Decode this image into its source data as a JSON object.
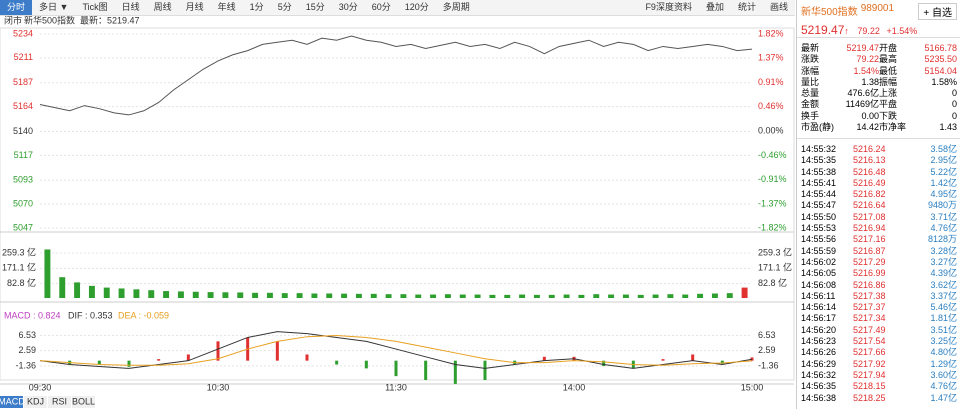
{
  "toolbar": {
    "tabs": [
      "分时",
      "多日 ▼",
      "Tick图",
      "日线",
      "周线",
      "月线",
      "年线",
      "1分",
      "5分",
      "15分",
      "30分",
      "60分",
      "120分",
      "多周期"
    ],
    "tools": [
      "F9深度资料",
      "叠加",
      "统计",
      "画线"
    ]
  },
  "chart_header": {
    "status": "闭市",
    "name": "新华500指数",
    "latest": "最新：5219.47"
  },
  "time_axis": [
    "09:30",
    "10:30",
    "11:30",
    "14:00",
    "15:00"
  ],
  "indicator_tabs": [
    "MACD",
    "KDJ",
    "RSI",
    "BOLL"
  ],
  "chart_data": [
    {
      "type": "line",
      "name": "price",
      "color": "#555555",
      "ylim": [
        5047,
        5234
      ],
      "yticks": [
        5047,
        5070,
        5093,
        5117,
        5140,
        5164,
        5187,
        5211,
        5234
      ],
      "y2lim": [
        -1.82,
        1.82
      ],
      "y2ticks": [
        {
          "value": -1.82,
          "label": "-1.82%"
        },
        {
          "value": -1.37,
          "label": "-1.37%"
        },
        {
          "value": -0.91,
          "label": "-0.91%"
        },
        {
          "value": -0.46,
          "label": "-0.46%"
        },
        {
          "value": 0,
          "label": "0.00%"
        },
        {
          "value": 0.46,
          "label": "0.46%"
        },
        {
          "value": 0.91,
          "label": "0.91%"
        },
        {
          "value": 1.37,
          "label": "1.37%"
        },
        {
          "value": 1.82,
          "label": "1.82%"
        }
      ],
      "values": [
        5166,
        5163,
        5160,
        5165,
        5162,
        5158,
        5156,
        5160,
        5168,
        5180,
        5190,
        5200,
        5208,
        5214,
        5218,
        5224,
        5226,
        5228,
        5224,
        5230,
        5228,
        5232,
        5228,
        5226,
        5222,
        5224,
        5220,
        5223,
        5226,
        5222,
        5224,
        5220,
        5226,
        5222,
        5215,
        5222,
        5225,
        5228,
        5222,
        5226,
        5224,
        5218,
        5222,
        5220,
        5222,
        5224,
        5222,
        5218,
        5219.47
      ]
    },
    {
      "type": "bar",
      "name": "volume",
      "color": "#2e9e2e",
      "last_color": "#e03030",
      "ylim": [
        0,
        300
      ],
      "yticks": [
        {
          "value": 82.8,
          "label": "82.8 亿"
        },
        {
          "value": 171.1,
          "label": "171.1 亿"
        },
        {
          "value": 259.3,
          "label": "259.3 亿"
        }
      ],
      "values": [
        280,
        120,
        90,
        70,
        60,
        55,
        50,
        45,
        40,
        38,
        36,
        34,
        33,
        32,
        30,
        30,
        28,
        28,
        26,
        26,
        25,
        24,
        24,
        22,
        22,
        20,
        20,
        22,
        20,
        20,
        18,
        18,
        20,
        18,
        18,
        20,
        18,
        22,
        20,
        20,
        18,
        20,
        22,
        20,
        24,
        26,
        28,
        60
      ]
    },
    {
      "type": "macd",
      "title": "MACD : 0.824",
      "dif_label": "DIF : 0.353",
      "dea_label": "DEA : -0.059",
      "ylim": [
        -5,
        10
      ],
      "yticks": [
        {
          "value": -1.36,
          "label": "-1.36"
        },
        2.59,
        6.53
      ],
      "series": [
        {
          "name": "DIF",
          "color": "#333333",
          "values": [
            0,
            -1,
            -1.5,
            -2,
            -1,
            0,
            3,
            6,
            7.5,
            7,
            6,
            5,
            3,
            1,
            -1,
            -2,
            -1,
            0,
            0.5,
            -1,
            -2,
            -1,
            0,
            -1,
            0.353
          ]
        },
        {
          "name": "DEA",
          "color": "#e8a020",
          "values": [
            0,
            -0.5,
            -1,
            -1.2,
            -1.2,
            -0.8,
            0.5,
            3,
            5,
            6.2,
            6.5,
            6,
            5,
            3.5,
            2,
            0.5,
            -0.5,
            -0.5,
            0,
            -0.3,
            -1,
            -1.2,
            -0.8,
            -0.6,
            -0.059
          ]
        }
      ],
      "values": [
        0,
        -1,
        -1,
        -1.6,
        0.4,
        1.6,
        5,
        6,
        5,
        1.6,
        -1,
        -2,
        -4,
        -5,
        -6,
        -5,
        -1,
        1,
        1,
        -1.4,
        -2,
        0.4,
        1.6,
        -0.8,
        0.824
      ],
      "up_color": "#e03030",
      "down_color": "#2e9e2e"
    }
  ],
  "panel": {
    "name": "新华500指数",
    "code": "989001",
    "button": "+ 自选",
    "price": "5219.47",
    "arrow": "↑",
    "change": "79.22",
    "pct": "+1.54%",
    "quote": [
      [
        "最新",
        "5219.47",
        "开盘",
        "5166.78"
      ],
      [
        "涨跌",
        "79.22",
        "最高",
        "5235.50"
      ],
      [
        "涨幅",
        "1.54%",
        "最低",
        "5154.04"
      ],
      [
        "量比",
        "1.38",
        "振幅",
        "1.58%"
      ],
      [
        "总量",
        "476.6亿",
        "上涨",
        "0"
      ],
      [
        "金额",
        "11469亿",
        "平盘",
        "0"
      ],
      [
        "换手",
        "0.00",
        "下跌",
        "0"
      ],
      [
        "市盈(静)",
        "14.42",
        "市净率",
        "1.43"
      ]
    ],
    "trades": [
      [
        "14:55:32",
        "5216.24",
        "3.58亿"
      ],
      [
        "14:55:35",
        "5216.13",
        "2.95亿"
      ],
      [
        "14:55:38",
        "5216.48",
        "5.22亿"
      ],
      [
        "14:55:41",
        "5216.49",
        "1.42亿"
      ],
      [
        "14:55:44",
        "5216.82",
        "4.95亿"
      ],
      [
        "14:55:47",
        "5216.64",
        "9480万"
      ],
      [
        "14:55:50",
        "5217.08",
        "3.71亿"
      ],
      [
        "14:55:53",
        "5216.94",
        "4.76亿"
      ],
      [
        "14:55:56",
        "5217.16",
        "8128万"
      ],
      [
        "14:55:59",
        "5216.87",
        "3.28亿"
      ],
      [
        "14:56:02",
        "5217.29",
        "3.27亿"
      ],
      [
        "14:56:05",
        "5216.99",
        "4.39亿"
      ],
      [
        "14:56:08",
        "5216.86",
        "3.62亿"
      ],
      [
        "14:56:11",
        "5217.38",
        "3.37亿"
      ],
      [
        "14:56:14",
        "5217.37",
        "5.46亿"
      ],
      [
        "14:56:17",
        "5217.34",
        "1.81亿"
      ],
      [
        "14:56:20",
        "5217.49",
        "3.51亿"
      ],
      [
        "14:56:23",
        "5217.54",
        "3.25亿"
      ],
      [
        "14:56:26",
        "5217.66",
        "4.80亿"
      ],
      [
        "14:56:29",
        "5217.92",
        "1.29亿"
      ],
      [
        "14:56:32",
        "5217.94",
        "3.60亿"
      ],
      [
        "14:56:35",
        "5218.15",
        "4.76亿"
      ],
      [
        "14:56:38",
        "5218.25",
        "1.47亿"
      ]
    ]
  }
}
